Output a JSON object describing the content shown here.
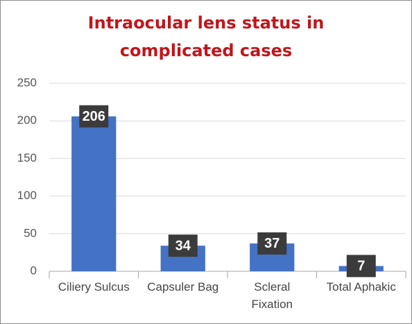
{
  "chart_data": {
    "type": "bar",
    "title": "Intraocular lens status in complicated cases",
    "categories": [
      "Ciliery Sulcus",
      "Capsuler Bag",
      "Scleral Fixation",
      "Total Aphakic"
    ],
    "values": [
      206,
      34,
      37,
      7
    ],
    "color": "#4472c4",
    "ylim": [
      0,
      250
    ],
    "yticks": [
      0,
      50,
      100,
      150,
      200,
      250
    ],
    "grid": true
  }
}
